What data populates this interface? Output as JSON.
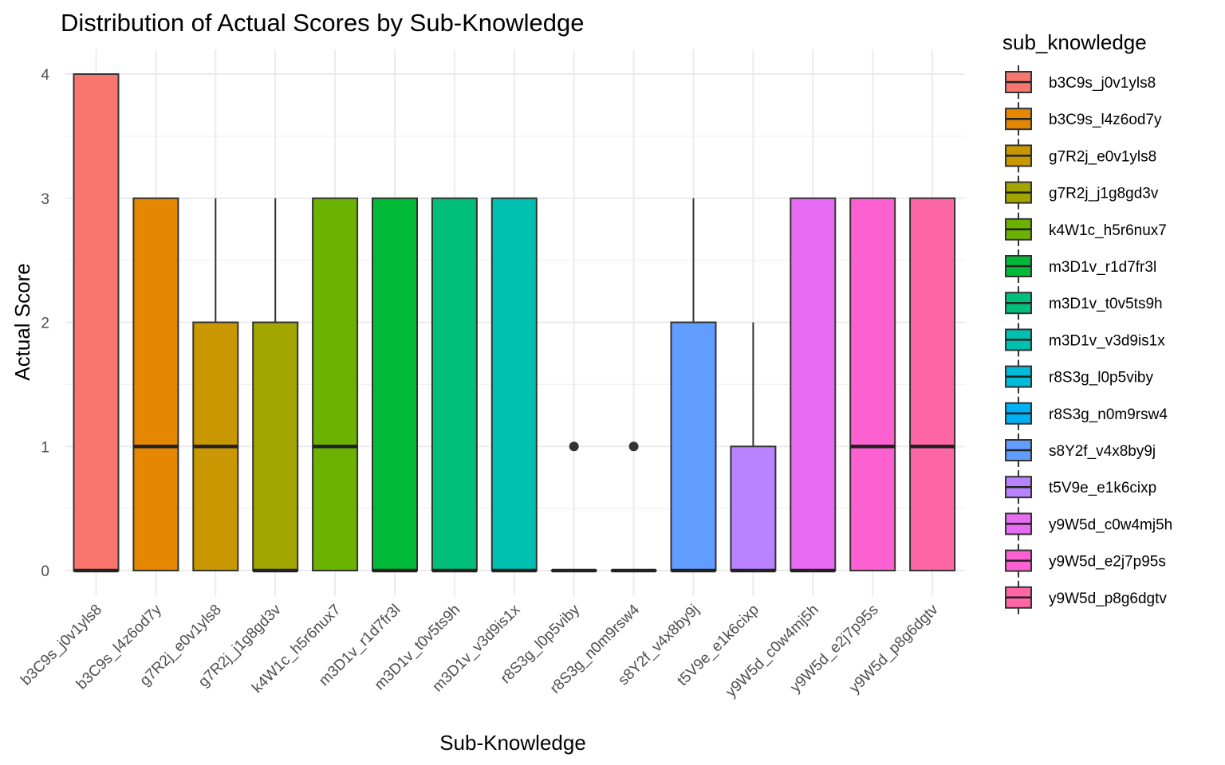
{
  "chart_data": {
    "type": "box",
    "title": "Distribution of Actual Scores by Sub-Knowledge",
    "xlabel": "Sub-Knowledge",
    "ylabel": "Actual Score",
    "ylim": [
      -0.25,
      4.2
    ],
    "yticks": [
      0,
      1,
      2,
      3,
      4
    ],
    "grid": true,
    "legend_title": "sub_knowledge",
    "legend_position": "right",
    "categories": [
      "b3C9s_j0v1yls8",
      "b3C9s_l4z6od7y",
      "g7R2j_e0v1yls8",
      "g7R2j_j1g8gd3v",
      "k4W1c_h5r6nux7",
      "m3D1v_r1d7fr3l",
      "m3D1v_t0v5ts9h",
      "m3D1v_v3d9is1x",
      "r8S3g_l0p5viby",
      "r8S3g_n0m9rsw4",
      "s8Y2f_v4x8by9j",
      "t5V9e_e1k6cixp",
      "y9W5d_c0w4mj5h",
      "y9W5d_e2j7p95s",
      "y9W5d_p8g6dgtv"
    ],
    "colors": [
      "#F8766D",
      "#E58700",
      "#C99800",
      "#A3A500",
      "#6BB100",
      "#00BA38",
      "#00BF7D",
      "#00C0AF",
      "#00BCD8",
      "#00B0F6",
      "#619CFF",
      "#B983FF",
      "#E76BF3",
      "#FD61D1",
      "#FF67A4"
    ],
    "boxes": [
      {
        "min": 0,
        "q1": 0,
        "median": 0,
        "q3": 4,
        "max": 4,
        "outliers": []
      },
      {
        "min": 0,
        "q1": 0,
        "median": 1,
        "q3": 3,
        "max": 3,
        "outliers": []
      },
      {
        "min": 0,
        "q1": 0,
        "median": 1,
        "q3": 2,
        "max": 3,
        "outliers": []
      },
      {
        "min": 0,
        "q1": 0,
        "median": 0,
        "q3": 2,
        "max": 3,
        "outliers": []
      },
      {
        "min": 0,
        "q1": 0,
        "median": 1,
        "q3": 3,
        "max": 3,
        "outliers": []
      },
      {
        "min": 0,
        "q1": 0,
        "median": 0,
        "q3": 3,
        "max": 3,
        "outliers": []
      },
      {
        "min": 0,
        "q1": 0,
        "median": 0,
        "q3": 3,
        "max": 3,
        "outliers": []
      },
      {
        "min": 0,
        "q1": 0,
        "median": 0,
        "q3": 3,
        "max": 3,
        "outliers": []
      },
      {
        "min": 0,
        "q1": 0,
        "median": 0,
        "q3": 0,
        "max": 0,
        "outliers": [
          1
        ]
      },
      {
        "min": 0,
        "q1": 0,
        "median": 0,
        "q3": 0,
        "max": 0,
        "outliers": [
          1
        ]
      },
      {
        "min": 0,
        "q1": 0,
        "median": 0,
        "q3": 2,
        "max": 3,
        "outliers": []
      },
      {
        "min": 0,
        "q1": 0,
        "median": 0,
        "q3": 1,
        "max": 2,
        "outliers": []
      },
      {
        "min": 0,
        "q1": 0,
        "median": 0,
        "q3": 3,
        "max": 3,
        "outliers": []
      },
      {
        "min": 0,
        "q1": 0,
        "median": 1,
        "q3": 3,
        "max": 3,
        "outliers": []
      },
      {
        "min": 0,
        "q1": 0,
        "median": 1,
        "q3": 3,
        "max": 3,
        "outliers": []
      }
    ]
  }
}
